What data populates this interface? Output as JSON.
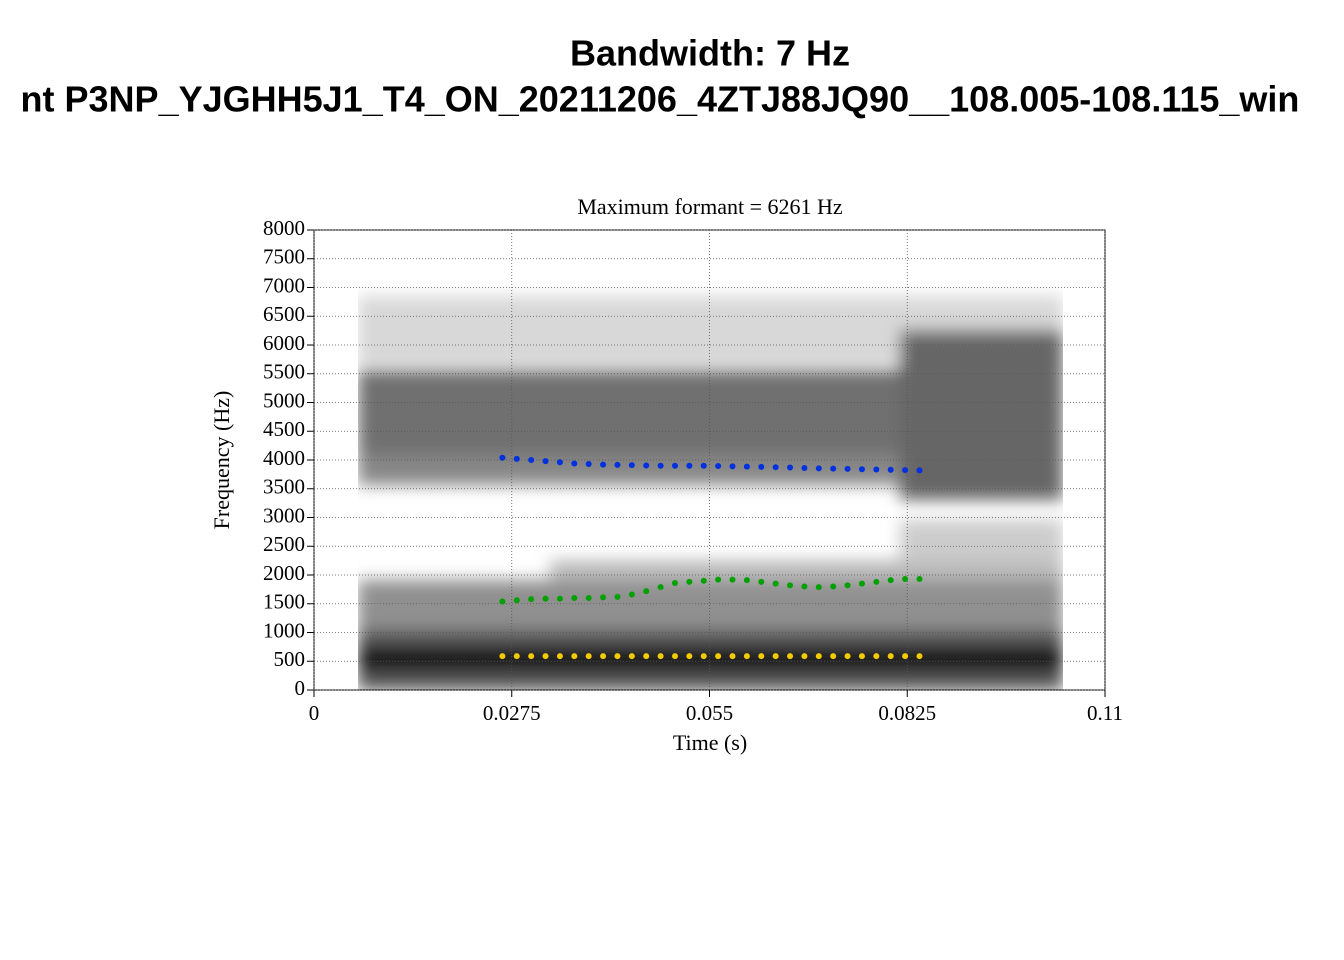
{
  "chart_data": {
    "type": "scatter",
    "title": "Bandwidth: 7 Hz",
    "subtitle": "nt P3NP_YJGHH5J1_T4_ON_20211206_4ZTJ88JQ90__108.005-108.115_win",
    "plot_title": "Maximum formant  =  6261 Hz",
    "x_label": "Time (s)",
    "y_label": "Frequency (Hz)",
    "xlim": [
      0,
      0.11
    ],
    "ylim": [
      0,
      8000
    ],
    "xticks": [
      0,
      0.0275,
      0.055,
      0.0825,
      0.11
    ],
    "yticks": [
      0,
      500,
      1000,
      1500,
      2000,
      2500,
      3000,
      3500,
      4000,
      4500,
      5000,
      5500,
      6000,
      6500,
      7000,
      7500,
      8000
    ],
    "grid": true,
    "x": [
      0.0262,
      0.0282,
      0.0302,
      0.0322,
      0.0342,
      0.0362,
      0.0382,
      0.0402,
      0.0422,
      0.0442,
      0.0462,
      0.0482,
      0.0502,
      0.0522,
      0.0542,
      0.0562,
      0.0582,
      0.0602,
      0.0622,
      0.0642,
      0.0662,
      0.0682,
      0.0702,
      0.0722,
      0.0742,
      0.0762,
      0.0782,
      0.0802,
      0.0822,
      0.0842
    ],
    "series": [
      {
        "color": "#f2cc00",
        "values": [
          590,
          590,
          590,
          590,
          590,
          590,
          590,
          590,
          590,
          590,
          590,
          590,
          590,
          590,
          590,
          590,
          590,
          590,
          590,
          590,
          590,
          590,
          590,
          590,
          590,
          590,
          590,
          590,
          590,
          590
        ]
      },
      {
        "color": "#00a000",
        "values": [
          1540,
          1560,
          1580,
          1590,
          1590,
          1600,
          1600,
          1610,
          1620,
          1660,
          1720,
          1790,
          1860,
          1880,
          1900,
          1920,
          1920,
          1910,
          1880,
          1850,
          1820,
          1800,
          1790,
          1800,
          1820,
          1850,
          1880,
          1910,
          1930,
          1930
        ]
      },
      {
        "color": "#0030e0",
        "values": [
          4040,
          4020,
          4000,
          3980,
          3960,
          3940,
          3930,
          3920,
          3915,
          3910,
          3905,
          3900,
          3900,
          3900,
          3900,
          3895,
          3890,
          3885,
          3880,
          3875,
          3870,
          3860,
          3855,
          3850,
          3845,
          3840,
          3835,
          3830,
          3825,
          3820
        ]
      }
    ]
  }
}
